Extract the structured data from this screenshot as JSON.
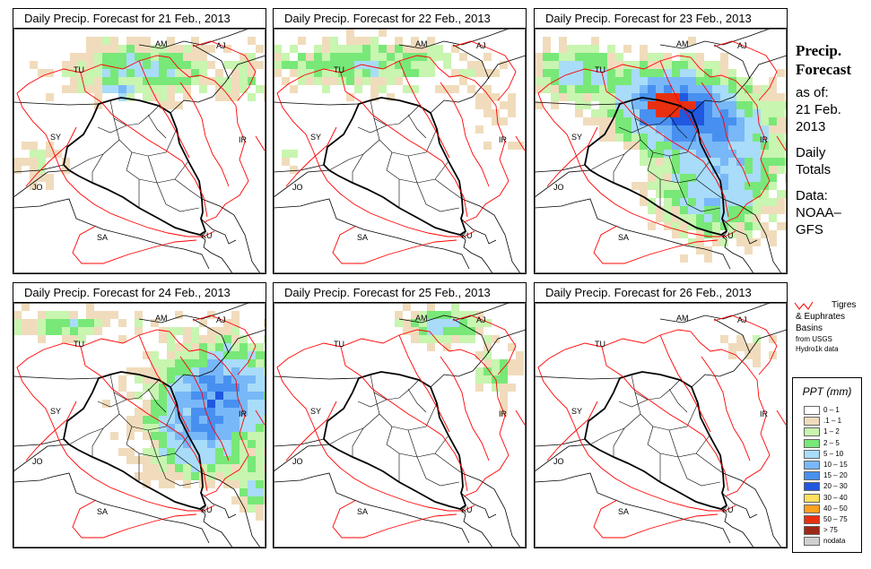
{
  "panels": [
    {
      "title": "Daily Precip. Forecast for  21 Feb., 2013",
      "seed": 11,
      "pattern": "north"
    },
    {
      "title": "Daily Precip. Forecast for  22 Feb., 2013",
      "seed": 23,
      "pattern": "north-light"
    },
    {
      "title": "Daily Precip. Forecast for  23 Feb., 2013",
      "seed": 37,
      "pattern": "heavy"
    },
    {
      "title": "Daily Precip. Forecast for  24 Feb., 2013",
      "seed": 41,
      "pattern": "east"
    },
    {
      "title": "Daily Precip. Forecast for  25 Feb., 2013",
      "seed": 53,
      "pattern": "light"
    },
    {
      "title": "Daily Precip. Forecast for  26 Feb., 2013",
      "seed": 67,
      "pattern": "tiny"
    }
  ],
  "country_labels": [
    "AM",
    "AJ",
    "TU",
    "SY",
    "IR",
    "JO",
    "SA",
    "KU"
  ],
  "sidebar": {
    "title1": "Precip.",
    "title2": "Forecast",
    "asof1": "as of:",
    "asof2": "21 Feb.",
    "asof3": "2013",
    "daily1": "Daily",
    "daily2": "Totals",
    "data1": "Data:",
    "data2": "NOAA–",
    "data3": "GFS"
  },
  "basin_legend": {
    "line1": "Tigres",
    "line2": "& Euphrates",
    "line3": "Basins",
    "line4": "from USGS",
    "line5": "Hydro1k data",
    "color": "#ff0000"
  },
  "ppt_legend": {
    "title": "PPT (mm)",
    "items": [
      {
        "label": "0 – 1",
        "color": "#ffffff"
      },
      {
        "label": ".1 – 1",
        "color": "#f0dcbc"
      },
      {
        "label": "1 – 2",
        "color": "#c8f5b0"
      },
      {
        "label": "2 – 5",
        "color": "#78e878"
      },
      {
        "label": "5 – 10",
        "color": "#a8dcf8"
      },
      {
        "label": "10 – 15",
        "color": "#78b8f8"
      },
      {
        "label": "15 – 20",
        "color": "#4890f0"
      },
      {
        "label": "20 – 30",
        "color": "#2058e0"
      },
      {
        "label": "30 – 40",
        "color": "#ffe060"
      },
      {
        "label": "40 – 50",
        "color": "#ffa020"
      },
      {
        "label": "50 – 75",
        "color": "#e83010"
      },
      {
        "label": "> 75",
        "color": "#a02818"
      },
      {
        "label": "nodata",
        "color": "#d0d0d0"
      }
    ]
  }
}
